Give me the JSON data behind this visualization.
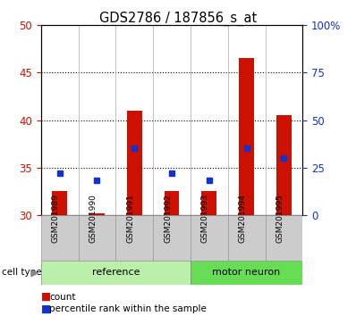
{
  "title": "GDS2786 / 187856_s_at",
  "samples": [
    "GSM201989",
    "GSM201990",
    "GSM201991",
    "GSM201992",
    "GSM201993",
    "GSM201994",
    "GSM201995"
  ],
  "count_values": [
    32.5,
    30.2,
    41.0,
    32.5,
    32.5,
    46.5,
    40.5
  ],
  "percentile_values": [
    22,
    18,
    35,
    22,
    18,
    35,
    30
  ],
  "ylim_left": [
    30,
    50
  ],
  "ylim_right": [
    0,
    100
  ],
  "yticks_left": [
    30,
    35,
    40,
    45,
    50
  ],
  "yticks_right": [
    0,
    25,
    50,
    75,
    100
  ],
  "ytick_labels_right": [
    "0",
    "25",
    "50",
    "75",
    "100%"
  ],
  "bar_color": "#cc1100",
  "marker_color": "#1133cc",
  "bar_bottom": 30,
  "cell_type_label": "cell type",
  "group_spans": [
    [
      0,
      4,
      "reference",
      "#bbf0aa"
    ],
    [
      4,
      7,
      "motor neuron",
      "#66dd55"
    ]
  ],
  "legend_count_color": "#cc1100",
  "legend_marker_color": "#1133cc",
  "gridlines": [
    35,
    40,
    45
  ],
  "left_tick_color": "#cc1100",
  "right_tick_color": "#1133cc"
}
